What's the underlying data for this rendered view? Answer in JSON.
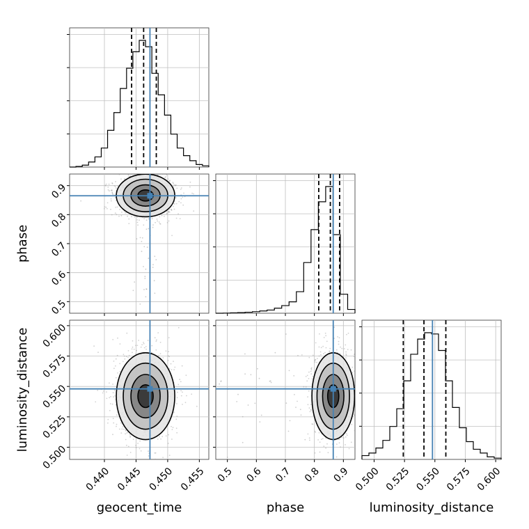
{
  "chart_data": {
    "type": "corner",
    "parameters": [
      {
        "name": "geocent_time",
        "truth": 0.4472,
        "quantiles": [
          0.4443,
          0.4462,
          0.4482
        ],
        "range": [
          0.4345,
          0.4565
        ],
        "ticks": [
          "0.440",
          "0.445",
          "0.450",
          "0.455"
        ]
      },
      {
        "name": "phase",
        "truth": 0.865,
        "quantiles": [
          0.815,
          0.855,
          0.887
        ],
        "range": [
          0.46,
          0.94
        ],
        "ticks": [
          "0.5",
          "0.6",
          "0.7",
          "0.8",
          "0.9"
        ]
      },
      {
        "name": "luminosity_distance",
        "truth": 0.548,
        "quantiles": [
          0.524,
          0.541,
          0.559
        ],
        "range": [
          0.49,
          0.6045
        ],
        "ticks": [
          "0.500",
          "0.525",
          "0.550",
          "0.575",
          "0.600"
        ]
      }
    ],
    "histograms": {
      "geocent_time": [
        0.0,
        0.005,
        0.015,
        0.04,
        0.08,
        0.15,
        0.29,
        0.43,
        0.62,
        0.78,
        0.91,
        1.0,
        0.95,
        0.74,
        0.57,
        0.41,
        0.26,
        0.15,
        0.09,
        0.05,
        0.02,
        0.01
      ],
      "phase": [
        0.0,
        0.001,
        0.003,
        0.005,
        0.008,
        0.012,
        0.018,
        0.025,
        0.04,
        0.06,
        0.09,
        0.17,
        0.4,
        0.66,
        0.88,
        1.0,
        0.62,
        0.15,
        0.03
      ],
      "luminosity_distance": [
        0.03,
        0.05,
        0.09,
        0.15,
        0.26,
        0.4,
        0.62,
        0.83,
        0.95,
        1.0,
        0.99,
        0.86,
        0.62,
        0.41,
        0.25,
        0.14,
        0.08,
        0.05,
        0.02,
        0.01
      ]
    },
    "panels_2d": [
      {
        "x": "geocent_time",
        "y": "phase",
        "mean": [
          0.4465,
          0.866
        ],
        "sd": [
          0.0022,
          0.035
        ]
      },
      {
        "x": "geocent_time",
        "y": "luminosity_distance",
        "mean": [
          0.4465,
          0.542
        ],
        "sd": [
          0.0022,
          0.017
        ]
      },
      {
        "x": "phase",
        "y": "luminosity_distance",
        "mean": [
          0.865,
          0.542
        ],
        "sd": [
          0.035,
          0.017
        ]
      }
    ],
    "grid": true
  }
}
